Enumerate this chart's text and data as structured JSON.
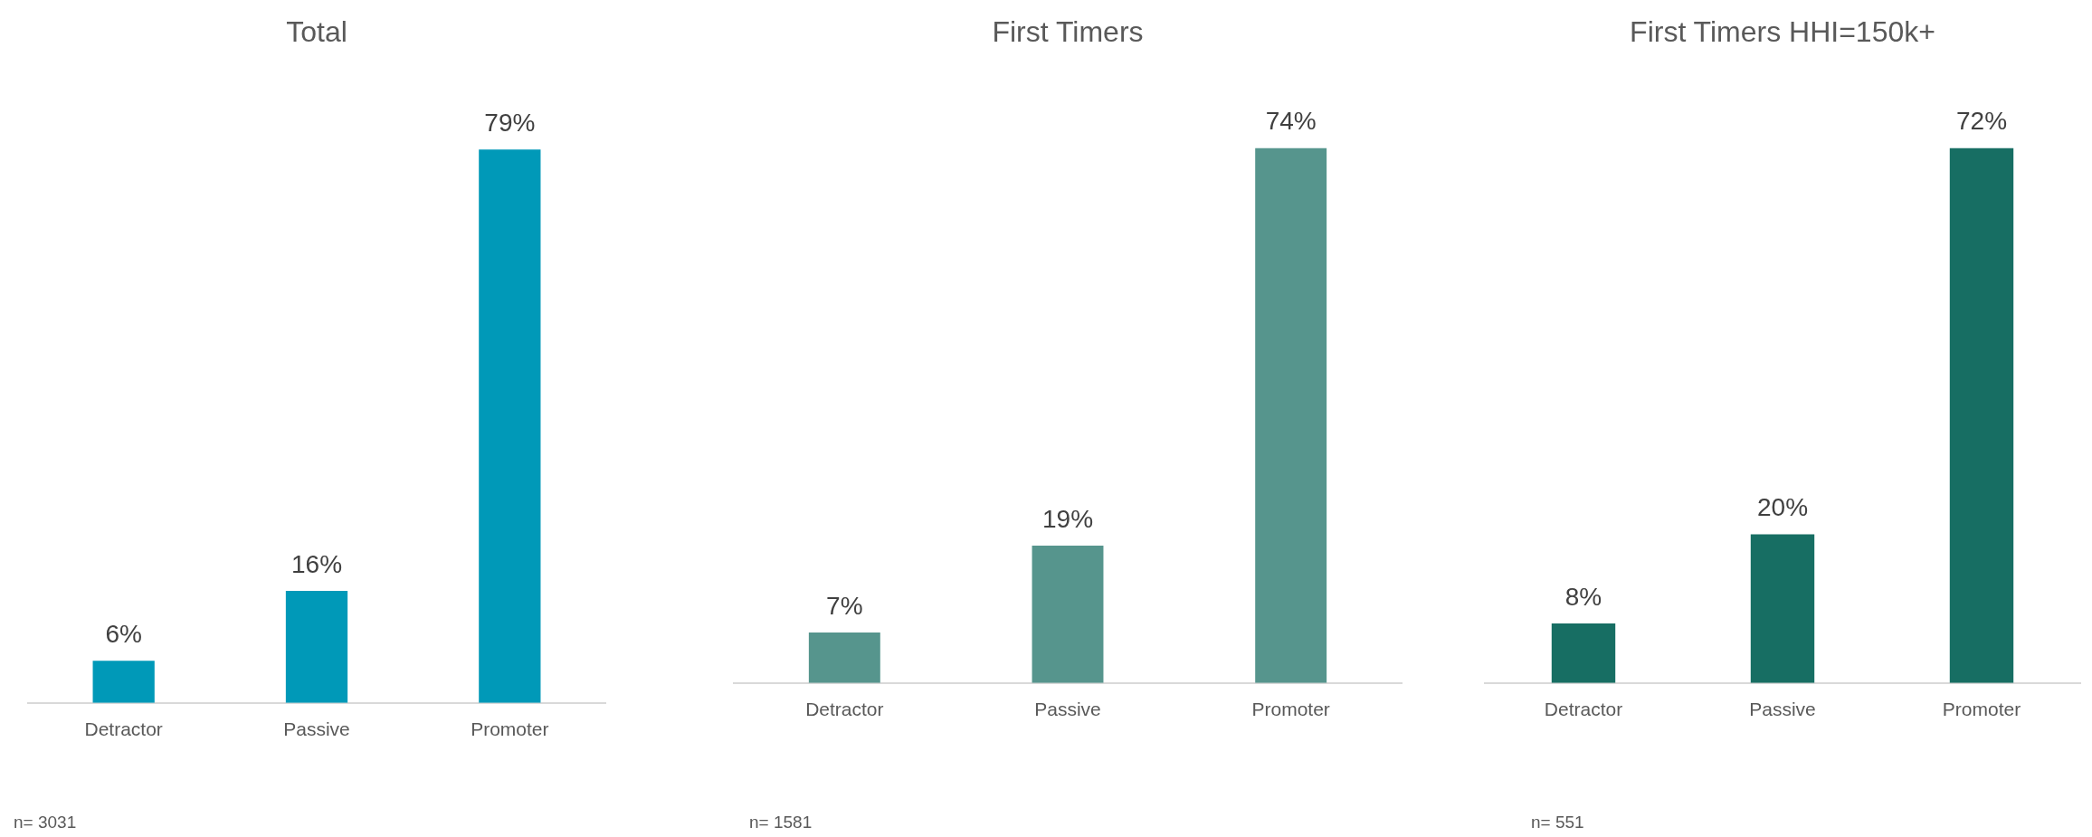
{
  "chart_data": [
    {
      "type": "bar",
      "title": "Total",
      "categories": [
        "Detractor",
        "Passive",
        "Promoter"
      ],
      "values": [
        6,
        16,
        79
      ],
      "value_labels": [
        "6%",
        "16%",
        "79%"
      ],
      "color": "#0099b8",
      "grid": false,
      "legend": false,
      "annotations": [
        "n= 3031"
      ]
    },
    {
      "type": "bar",
      "title": "First Timers",
      "categories": [
        "Detractor",
        "Passive",
        "Promoter"
      ],
      "values": [
        7,
        19,
        74
      ],
      "value_labels": [
        "7%",
        "19%",
        "74%"
      ],
      "color": "#56958d",
      "grid": false,
      "legend": false,
      "annotations": [
        "n= 1581"
      ]
    },
    {
      "type": "bar",
      "title": "First Timers HHI=150k+",
      "categories": [
        "Detractor",
        "Passive",
        "Promoter"
      ],
      "values": [
        8,
        20,
        72
      ],
      "value_labels": [
        "8%",
        "20%",
        "72%"
      ],
      "color": "#176e63",
      "grid": false,
      "legend": false,
      "annotations": [
        "n= 551"
      ]
    }
  ]
}
